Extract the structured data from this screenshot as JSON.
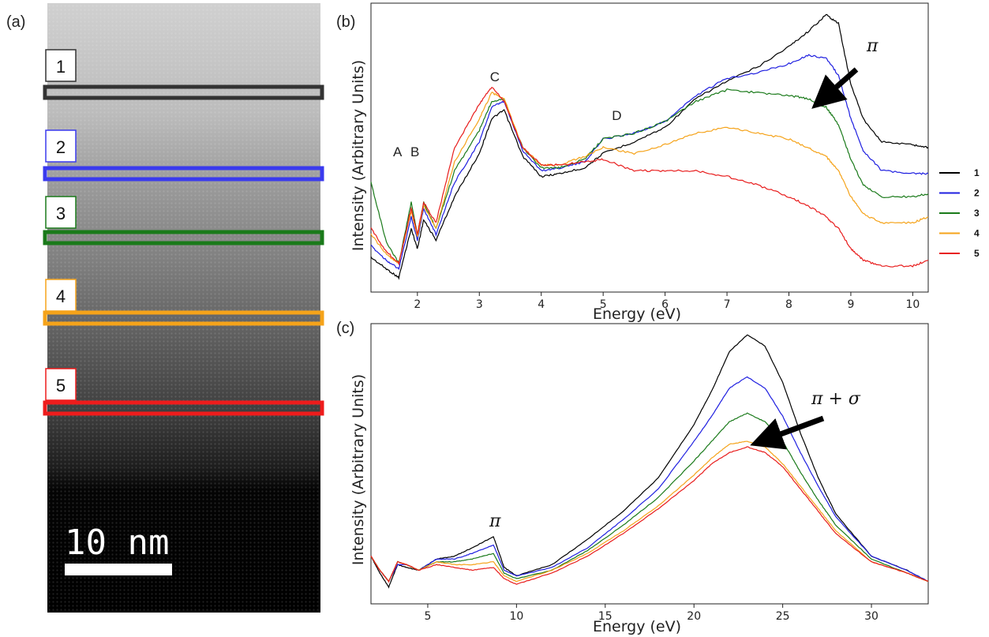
{
  "panel_labels": {
    "a": "(a)",
    "b": "(b)",
    "c": "(c)"
  },
  "image_panel": {
    "regions": [
      {
        "label": "1",
        "color": "#333333"
      },
      {
        "label": "2",
        "color": "#3a3aee"
      },
      {
        "label": "3",
        "color": "#1a7a1a"
      },
      {
        "label": "4",
        "color": "#f5a31a"
      },
      {
        "label": "5",
        "color": "#ee1c1c"
      }
    ],
    "scale_bar_label": "10 nm"
  },
  "chart_data": [
    {
      "type": "line",
      "panel": "(b)",
      "xlabel": "Energy (eV)",
      "ylabel": "Intensity (Arbitrary Units)",
      "xlim": [
        1.25,
        10.25
      ],
      "xticks": [
        2,
        3,
        4,
        5,
        6,
        7,
        8,
        9,
        10
      ],
      "ylim": [
        0,
        1
      ],
      "grid": false,
      "legend_position": "right",
      "peak_labels": [
        {
          "text": "A",
          "x": 1.68
        },
        {
          "text": "B",
          "x": 1.96
        },
        {
          "text": "C",
          "x": 3.25
        },
        {
          "text": "D",
          "x": 5.22
        }
      ],
      "arrow_label": "π",
      "series": [
        {
          "name": "1",
          "color": "#000000",
          "x": [
            1.25,
            1.5,
            1.7,
            1.9,
            2.0,
            2.1,
            2.3,
            2.6,
            3.0,
            3.2,
            3.4,
            3.7,
            4.0,
            4.3,
            4.7,
            5.0,
            5.5,
            6.0,
            6.5,
            7.0,
            7.5,
            8.0,
            8.3,
            8.6,
            8.8,
            9.0,
            9.2,
            9.5,
            10.0,
            10.25
          ],
          "y": [
            0.12,
            0.08,
            0.05,
            0.22,
            0.15,
            0.25,
            0.18,
            0.33,
            0.48,
            0.6,
            0.63,
            0.47,
            0.4,
            0.41,
            0.43,
            0.48,
            0.52,
            0.57,
            0.67,
            0.73,
            0.78,
            0.85,
            0.9,
            0.96,
            0.93,
            0.72,
            0.6,
            0.52,
            0.51,
            0.5
          ]
        },
        {
          "name": "2",
          "color": "#1f1fe0",
          "x": [
            1.25,
            1.5,
            1.7,
            1.9,
            2.0,
            2.1,
            2.3,
            2.6,
            3.0,
            3.2,
            3.4,
            3.7,
            4.0,
            4.3,
            4.7,
            5.0,
            5.5,
            6.0,
            6.5,
            7.0,
            7.5,
            8.0,
            8.3,
            8.6,
            8.8,
            9.0,
            9.2,
            9.5,
            10.0,
            10.25
          ],
          "y": [
            0.16,
            0.11,
            0.08,
            0.26,
            0.18,
            0.29,
            0.2,
            0.38,
            0.52,
            0.64,
            0.66,
            0.49,
            0.42,
            0.43,
            0.45,
            0.53,
            0.55,
            0.59,
            0.68,
            0.74,
            0.76,
            0.79,
            0.82,
            0.81,
            0.75,
            0.6,
            0.49,
            0.42,
            0.41,
            0.41
          ]
        },
        {
          "name": "3",
          "color": "#1a7a1a",
          "x": [
            1.25,
            1.5,
            1.7,
            1.9,
            2.0,
            2.1,
            2.3,
            2.6,
            3.0,
            3.2,
            3.4,
            3.7,
            4.0,
            4.3,
            4.7,
            5.0,
            5.5,
            6.0,
            6.5,
            7.0,
            7.5,
            8.0,
            8.3,
            8.6,
            8.8,
            9.0,
            9.2,
            9.5,
            10.0,
            10.25
          ],
          "y": [
            0.38,
            0.17,
            0.1,
            0.31,
            0.2,
            0.31,
            0.22,
            0.42,
            0.56,
            0.66,
            0.67,
            0.5,
            0.43,
            0.43,
            0.46,
            0.53,
            0.55,
            0.59,
            0.66,
            0.7,
            0.69,
            0.68,
            0.67,
            0.64,
            0.58,
            0.46,
            0.37,
            0.33,
            0.33,
            0.34
          ]
        },
        {
          "name": "4",
          "color": "#f5a31a",
          "x": [
            1.25,
            1.5,
            1.7,
            1.9,
            2.0,
            2.1,
            2.3,
            2.6,
            3.0,
            3.2,
            3.4,
            3.7,
            4.0,
            4.3,
            4.7,
            5.0,
            5.5,
            6.0,
            6.5,
            7.0,
            7.5,
            8.0,
            8.3,
            8.6,
            8.8,
            9.0,
            9.2,
            9.5,
            10.0,
            10.25
          ],
          "y": [
            0.2,
            0.13,
            0.1,
            0.28,
            0.19,
            0.3,
            0.22,
            0.45,
            0.6,
            0.69,
            0.67,
            0.5,
            0.44,
            0.44,
            0.47,
            0.5,
            0.48,
            0.51,
            0.55,
            0.57,
            0.55,
            0.53,
            0.5,
            0.47,
            0.42,
            0.33,
            0.27,
            0.24,
            0.24,
            0.26
          ]
        },
        {
          "name": "5",
          "color": "#e81c1c",
          "x": [
            1.25,
            1.5,
            1.7,
            1.9,
            2.0,
            2.1,
            2.3,
            2.6,
            3.0,
            3.2,
            3.4,
            3.7,
            4.0,
            4.3,
            4.7,
            5.0,
            5.5,
            6.0,
            6.5,
            7.0,
            7.5,
            8.0,
            8.3,
            8.6,
            8.8,
            9.0,
            9.2,
            9.5,
            10.0,
            10.25
          ],
          "y": [
            0.22,
            0.14,
            0.1,
            0.29,
            0.2,
            0.31,
            0.24,
            0.5,
            0.65,
            0.71,
            0.66,
            0.5,
            0.44,
            0.44,
            0.45,
            0.46,
            0.42,
            0.42,
            0.42,
            0.4,
            0.37,
            0.33,
            0.3,
            0.26,
            0.22,
            0.15,
            0.11,
            0.09,
            0.09,
            0.11
          ]
        }
      ]
    },
    {
      "type": "line",
      "panel": "(c)",
      "xlabel": "Energy (eV)",
      "ylabel": "Intensity (Arbitrary Units)",
      "xlim": [
        1.8,
        33.2
      ],
      "xticks": [
        5,
        10,
        15,
        20,
        25,
        30
      ],
      "ylim": [
        0,
        1
      ],
      "grid": false,
      "pi_label": "π",
      "arrow_label": "π + σ",
      "series": [
        {
          "name": "1",
          "color": "#000000",
          "x": [
            1.8,
            2.3,
            2.8,
            3.3,
            3.8,
            4.5,
            5.5,
            6.5,
            7.5,
            8.7,
            9.3,
            10,
            12,
            14,
            16,
            18,
            20,
            21,
            22,
            23,
            24,
            25,
            26,
            27,
            28,
            30,
            32,
            33.2
          ],
          "y": [
            0.17,
            0.11,
            0.06,
            0.14,
            0.13,
            0.12,
            0.16,
            0.17,
            0.2,
            0.24,
            0.13,
            0.1,
            0.14,
            0.23,
            0.33,
            0.45,
            0.64,
            0.76,
            0.9,
            0.96,
            0.92,
            0.79,
            0.61,
            0.45,
            0.32,
            0.17,
            0.12,
            0.08
          ]
        },
        {
          "name": "2",
          "color": "#1f1fe0",
          "x": [
            1.8,
            2.3,
            2.8,
            3.3,
            3.8,
            4.5,
            5.5,
            6.5,
            7.5,
            8.7,
            9.3,
            10,
            12,
            14,
            16,
            18,
            20,
            21,
            22,
            23,
            24,
            25,
            26,
            27,
            28,
            30,
            32,
            33.2
          ],
          "y": [
            0.17,
            0.12,
            0.08,
            0.14,
            0.14,
            0.12,
            0.16,
            0.16,
            0.18,
            0.21,
            0.12,
            0.1,
            0.13,
            0.2,
            0.3,
            0.41,
            0.58,
            0.67,
            0.77,
            0.81,
            0.77,
            0.67,
            0.54,
            0.42,
            0.31,
            0.17,
            0.12,
            0.08
          ]
        },
        {
          "name": "3",
          "color": "#1a7a1a",
          "x": [
            1.8,
            2.3,
            2.8,
            3.3,
            3.8,
            4.5,
            5.5,
            6.5,
            7.5,
            8.7,
            9.3,
            10,
            12,
            14,
            16,
            18,
            20,
            21,
            22,
            23,
            24,
            25,
            26,
            27,
            28,
            30,
            32,
            33.2
          ],
          "y": [
            0.17,
            0.12,
            0.08,
            0.15,
            0.14,
            0.12,
            0.15,
            0.15,
            0.16,
            0.18,
            0.11,
            0.09,
            0.12,
            0.19,
            0.28,
            0.38,
            0.51,
            0.58,
            0.65,
            0.68,
            0.65,
            0.58,
            0.47,
            0.37,
            0.28,
            0.16,
            0.11,
            0.08
          ]
        },
        {
          "name": "4",
          "color": "#f5a31a",
          "x": [
            1.8,
            2.3,
            2.8,
            3.3,
            3.8,
            4.5,
            5.5,
            6.5,
            7.5,
            8.7,
            9.3,
            10,
            12,
            14,
            16,
            18,
            20,
            21,
            22,
            23,
            24,
            25,
            26,
            27,
            28,
            30,
            32,
            33.2
          ],
          "y": [
            0.17,
            0.12,
            0.08,
            0.15,
            0.14,
            0.12,
            0.15,
            0.14,
            0.14,
            0.15,
            0.1,
            0.08,
            0.12,
            0.18,
            0.26,
            0.35,
            0.46,
            0.52,
            0.57,
            0.58,
            0.56,
            0.5,
            0.42,
            0.34,
            0.26,
            0.15,
            0.11,
            0.08
          ]
        },
        {
          "name": "5",
          "color": "#e81c1c",
          "x": [
            1.8,
            2.3,
            2.8,
            3.3,
            3.8,
            4.5,
            5.5,
            6.5,
            7.5,
            8.7,
            9.3,
            10,
            12,
            14,
            16,
            18,
            20,
            21,
            22,
            23,
            24,
            25,
            26,
            27,
            28,
            30,
            32,
            33.2
          ],
          "y": [
            0.17,
            0.12,
            0.08,
            0.15,
            0.14,
            0.12,
            0.14,
            0.13,
            0.12,
            0.13,
            0.09,
            0.07,
            0.11,
            0.17,
            0.25,
            0.34,
            0.44,
            0.5,
            0.54,
            0.56,
            0.54,
            0.49,
            0.41,
            0.33,
            0.25,
            0.15,
            0.11,
            0.08
          ]
        }
      ]
    }
  ]
}
